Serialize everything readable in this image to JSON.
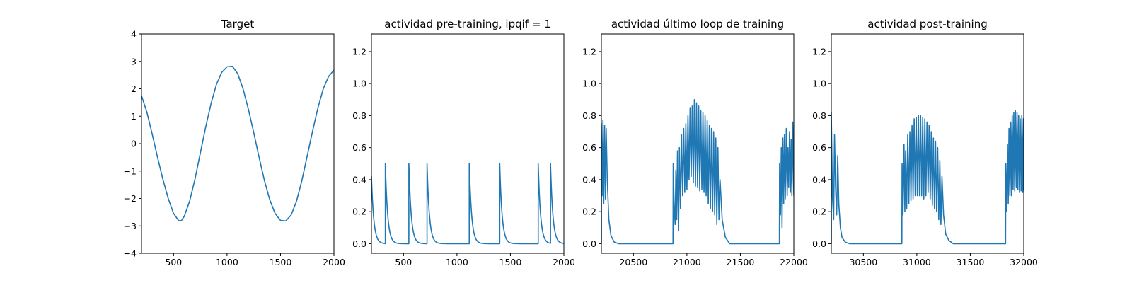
{
  "chart_data": [
    {
      "type": "line",
      "title": "Target",
      "xlim": [
        200,
        2000
      ],
      "ylim": [
        -4,
        4
      ],
      "xticks": [
        500,
        1000,
        1500,
        2000
      ],
      "yticks": [
        -4,
        -3,
        -2,
        -1,
        0,
        1,
        2,
        3,
        4
      ],
      "series": [
        {
          "color": "#1f77b4",
          "points": [
            [
              200,
              1.75
            ],
            [
              250,
              1.15
            ],
            [
              300,
              0.35
            ],
            [
              350,
              -0.5
            ],
            [
              400,
              -1.3
            ],
            [
              450,
              -2.0
            ],
            [
              500,
              -2.55
            ],
            [
              550,
              -2.82
            ],
            [
              575,
              -2.8
            ],
            [
              600,
              -2.65
            ],
            [
              650,
              -2.1
            ],
            [
              700,
              -1.3
            ],
            [
              750,
              -0.35
            ],
            [
              800,
              0.6
            ],
            [
              850,
              1.45
            ],
            [
              900,
              2.15
            ],
            [
              950,
              2.6
            ],
            [
              1000,
              2.8
            ],
            [
              1050,
              2.82
            ],
            [
              1100,
              2.55
            ],
            [
              1150,
              2.0
            ],
            [
              1200,
              1.25
            ],
            [
              1250,
              0.4
            ],
            [
              1300,
              -0.5
            ],
            [
              1350,
              -1.35
            ],
            [
              1400,
              -2.05
            ],
            [
              1450,
              -2.55
            ],
            [
              1500,
              -2.8
            ],
            [
              1550,
              -2.82
            ],
            [
              1600,
              -2.6
            ],
            [
              1650,
              -2.1
            ],
            [
              1700,
              -1.35
            ],
            [
              1750,
              -0.45
            ],
            [
              1800,
              0.45
            ],
            [
              1850,
              1.3
            ],
            [
              1900,
              2.0
            ],
            [
              1950,
              2.45
            ],
            [
              2000,
              2.68
            ]
          ]
        }
      ]
    },
    {
      "type": "line",
      "title": "actividad pre-training, ipqif = 1",
      "xlim": [
        200,
        2000
      ],
      "ylim": [
        -0.06,
        1.31
      ],
      "xticks": [
        500,
        1000,
        1500,
        2000
      ],
      "yticks": [
        0.0,
        0.2,
        0.4,
        0.6,
        0.8,
        1.0,
        1.2
      ],
      "spikes": [
        330,
        550,
        720,
        1115,
        1400,
        1760,
        1875
      ],
      "start_value": 0.42,
      "series": [
        {
          "color": "#1f77b4"
        }
      ]
    },
    {
      "type": "line",
      "title": "actividad último loop de training",
      "xlim": [
        20200,
        22000
      ],
      "ylim": [
        -0.06,
        1.31
      ],
      "xticks": [
        20500,
        21000,
        21500,
        22000
      ],
      "yticks": [
        0.0,
        0.2,
        0.4,
        0.6,
        0.8,
        1.0,
        1.2
      ],
      "series": [
        {
          "color": "#1f77b4",
          "points": [
            [
              20200,
              0.0
            ],
            [
              20200,
              0.75
            ],
            [
              20207,
              0.3
            ],
            [
              20215,
              0.77
            ],
            [
              20222,
              0.25
            ],
            [
              20230,
              0.74
            ],
            [
              20238,
              0.28
            ],
            [
              20245,
              0.72
            ],
            [
              20255,
              0.4
            ],
            [
              20270,
              0.15
            ],
            [
              20290,
              0.05
            ],
            [
              20320,
              0.01
            ],
            [
              20360,
              0.0
            ],
            [
              20870,
              0.0
            ],
            [
              20872,
              0.5
            ],
            [
              20880,
              0.25
            ],
            [
              20890,
              0.12
            ],
            [
              20897,
              0.46
            ],
            [
              20905,
              0.15
            ],
            [
              20912,
              0.58
            ],
            [
              20922,
              0.08
            ],
            [
              20930,
              0.6
            ],
            [
              20940,
              0.22
            ],
            [
              20950,
              0.68
            ],
            [
              20960,
              0.3
            ],
            [
              20970,
              0.72
            ],
            [
              20980,
              0.32
            ],
            [
              20990,
              0.75
            ],
            [
              21000,
              0.34
            ],
            [
              21010,
              0.8
            ],
            [
              21020,
              0.4
            ],
            [
              21030,
              0.85
            ],
            [
              21040,
              0.42
            ],
            [
              21050,
              0.86
            ],
            [
              21060,
              0.38
            ],
            [
              21070,
              0.9
            ],
            [
              21080,
              0.36
            ],
            [
              21090,
              0.88
            ],
            [
              21100,
              0.35
            ],
            [
              21110,
              0.86
            ],
            [
              21120,
              0.33
            ],
            [
              21130,
              0.83
            ],
            [
              21140,
              0.34
            ],
            [
              21150,
              0.82
            ],
            [
              21160,
              0.32
            ],
            [
              21170,
              0.8
            ],
            [
              21180,
              0.3
            ],
            [
              21190,
              0.77
            ],
            [
              21200,
              0.25
            ],
            [
              21210,
              0.74
            ],
            [
              21220,
              0.22
            ],
            [
              21230,
              0.72
            ],
            [
              21240,
              0.2
            ],
            [
              21250,
              0.7
            ],
            [
              21260,
              0.18
            ],
            [
              21270,
              0.66
            ],
            [
              21280,
              0.12
            ],
            [
              21290,
              0.6
            ],
            [
              21300,
              0.15
            ],
            [
              21310,
              0.4
            ],
            [
              21330,
              0.15
            ],
            [
              21360,
              0.04
            ],
            [
              21400,
              0.0
            ],
            [
              21865,
              0.0
            ],
            [
              21867,
              0.5
            ],
            [
              21875,
              0.18
            ],
            [
              21883,
              0.6
            ],
            [
              21890,
              0.1
            ],
            [
              21897,
              0.66
            ],
            [
              21905,
              0.25
            ],
            [
              21912,
              0.68
            ],
            [
              21920,
              0.28
            ],
            [
              21930,
              0.72
            ],
            [
              21938,
              0.3
            ],
            [
              21945,
              0.6
            ],
            [
              21952,
              0.35
            ],
            [
              21960,
              0.7
            ],
            [
              21968,
              0.32
            ],
            [
              21975,
              0.65
            ],
            [
              21982,
              0.3
            ],
            [
              21990,
              0.76
            ],
            [
              22000,
              0.3
            ]
          ]
        }
      ]
    },
    {
      "type": "line",
      "title": "actividad post-training",
      "xlim": [
        30200,
        32000
      ],
      "ylim": [
        -0.06,
        1.31
      ],
      "xticks": [
        30500,
        31000,
        31500,
        32000
      ],
      "yticks": [
        0.0,
        0.2,
        0.4,
        0.6,
        0.8,
        1.0,
        1.2
      ],
      "series": [
        {
          "color": "#1f77b4",
          "points": [
            [
              30200,
              0.0
            ],
            [
              30200,
              0.82
            ],
            [
              30210,
              0.3
            ],
            [
              30222,
              0.15
            ],
            [
              30230,
              0.68
            ],
            [
              30240,
              0.35
            ],
            [
              30250,
              0.18
            ],
            [
              30260,
              0.55
            ],
            [
              30270,
              0.25
            ],
            [
              30285,
              0.1
            ],
            [
              30300,
              0.04
            ],
            [
              30330,
              0.01
            ],
            [
              30370,
              0.0
            ],
            [
              30860,
              0.0
            ],
            [
              30862,
              0.5
            ],
            [
              30870,
              0.18
            ],
            [
              30880,
              0.62
            ],
            [
              30888,
              0.2
            ],
            [
              30895,
              0.58
            ],
            [
              30905,
              0.22
            ],
            [
              30915,
              0.68
            ],
            [
              30925,
              0.25
            ],
            [
              30935,
              0.7
            ],
            [
              30945,
              0.27
            ],
            [
              30955,
              0.74
            ],
            [
              30965,
              0.28
            ],
            [
              30975,
              0.78
            ],
            [
              30985,
              0.3
            ],
            [
              30995,
              0.79
            ],
            [
              31005,
              0.3
            ],
            [
              31015,
              0.8
            ],
            [
              31025,
              0.3
            ],
            [
              31035,
              0.8
            ],
            [
              31045,
              0.3
            ],
            [
              31055,
              0.79
            ],
            [
              31065,
              0.28
            ],
            [
              31075,
              0.78
            ],
            [
              31085,
              0.3
            ],
            [
              31095,
              0.76
            ],
            [
              31105,
              0.32
            ],
            [
              31115,
              0.74
            ],
            [
              31125,
              0.28
            ],
            [
              31135,
              0.7
            ],
            [
              31145,
              0.24
            ],
            [
              31155,
              0.66
            ],
            [
              31165,
              0.22
            ],
            [
              31175,
              0.64
            ],
            [
              31185,
              0.2
            ],
            [
              31195,
              0.6
            ],
            [
              31205,
              0.15
            ],
            [
              31215,
              0.52
            ],
            [
              31225,
              0.12
            ],
            [
              31235,
              0.42
            ],
            [
              31250,
              0.18
            ],
            [
              31270,
              0.06
            ],
            [
              31300,
              0.02
            ],
            [
              31340,
              0.0
            ],
            [
              31830,
              0.0
            ],
            [
              31832,
              0.5
            ],
            [
              31840,
              0.2
            ],
            [
              31848,
              0.62
            ],
            [
              31855,
              0.25
            ],
            [
              31862,
              0.72
            ],
            [
              31870,
              0.3
            ],
            [
              31878,
              0.76
            ],
            [
              31885,
              0.3
            ],
            [
              31892,
              0.8
            ],
            [
              31900,
              0.34
            ],
            [
              31907,
              0.82
            ],
            [
              31915,
              0.33
            ],
            [
              31922,
              0.83
            ],
            [
              31930,
              0.35
            ],
            [
              31937,
              0.82
            ],
            [
              31945,
              0.34
            ],
            [
              31952,
              0.8
            ],
            [
              31960,
              0.32
            ],
            [
              31967,
              0.78
            ],
            [
              31975,
              0.33
            ],
            [
              31982,
              0.8
            ],
            [
              31990,
              0.32
            ],
            [
              31997,
              0.78
            ],
            [
              32000,
              0.34
            ]
          ]
        }
      ]
    }
  ]
}
